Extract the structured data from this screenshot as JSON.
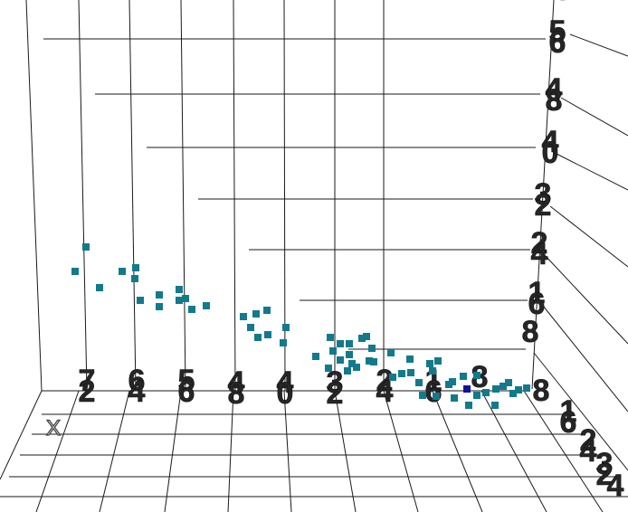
{
  "chart_data": {
    "type": "scatter",
    "axis_labels": {
      "x": "X"
    },
    "x_ticks": [
      {
        "glyphs": [
          "7",
          "2"
        ]
      },
      {
        "glyphs": [
          "6",
          "4"
        ]
      },
      {
        "glyphs": [
          "5",
          "6"
        ]
      },
      {
        "glyphs": [
          "4",
          "8"
        ]
      },
      {
        "glyphs": [
          "4",
          "0"
        ]
      },
      {
        "glyphs": [
          "3",
          "2"
        ]
      },
      {
        "glyphs": [
          "2",
          "4"
        ]
      },
      {
        "glyphs": [
          "1",
          "6"
        ]
      },
      {
        "glyphs": [
          "8"
        ]
      }
    ],
    "z_ticks": [
      {
        "glyphs": [
          "6",
          "4"
        ]
      },
      {
        "glyphs": [
          "5",
          "6"
        ]
      },
      {
        "glyphs": [
          "4",
          "8"
        ]
      },
      {
        "glyphs": [
          "4",
          "0"
        ]
      },
      {
        "glyphs": [
          "3",
          "2"
        ]
      },
      {
        "glyphs": [
          "2",
          "4"
        ]
      },
      {
        "glyphs": [
          "1",
          "6"
        ]
      },
      {
        "glyphs": [
          "8"
        ]
      }
    ],
    "y_ticks": [
      {
        "glyphs": [
          "8"
        ]
      },
      {
        "glyphs": [
          "1",
          "6"
        ]
      },
      {
        "glyphs": [
          "2",
          "4"
        ]
      },
      {
        "glyphs": [
          "3",
          "2"
        ]
      },
      {
        "glyphs": [
          "4"
        ]
      }
    ],
    "series": [
      {
        "color": "#137a8c",
        "points": [
          [
            95,
            273
          ],
          [
            83,
            300
          ],
          [
            110,
            318
          ],
          [
            135,
            300
          ],
          [
            150,
            296
          ],
          [
            149,
            308
          ],
          [
            155,
            332
          ],
          [
            176,
            326
          ],
          [
            176,
            339
          ],
          [
            198,
            320
          ],
          [
            198,
            332
          ],
          [
            205,
            330
          ],
          [
            212,
            342
          ],
          [
            228,
            338
          ],
          [
            269,
            350
          ],
          [
            283,
            347
          ],
          [
            295,
            343
          ],
          [
            277,
            362
          ],
          [
            296,
            370
          ],
          [
            316,
            362
          ],
          [
            285,
            373
          ],
          [
            313,
            379
          ],
          [
            349,
            394
          ],
          [
            365,
            373
          ],
          [
            368,
            388
          ],
          [
            376,
            380
          ],
          [
            386,
            380
          ],
          [
            400,
            374
          ],
          [
            405,
            372
          ],
          [
            386,
            392
          ],
          [
            376,
            398
          ],
          [
            363,
            407
          ],
          [
            389,
            402
          ],
          [
            394,
            406
          ],
          [
            384,
            410
          ],
          [
            411,
            385
          ],
          [
            408,
            399
          ],
          [
            413,
            400
          ],
          [
            432,
            390
          ],
          [
            453,
            397
          ],
          [
            434,
            417
          ],
          [
            444,
            413
          ],
          [
            454,
            412
          ],
          [
            475,
            402
          ],
          [
            484,
            399
          ],
          [
            478,
            410
          ],
          [
            463,
            423
          ],
          [
            467,
            437
          ],
          [
            496,
            425
          ],
          [
            500,
            422
          ],
          [
            512,
            416
          ],
          [
            527,
            415
          ],
          [
            482,
            438
          ],
          [
            502,
            440
          ],
          [
            518,
            448
          ],
          [
            527,
            437
          ],
          [
            537,
            434
          ],
          [
            548,
            430
          ],
          [
            562,
            423
          ],
          [
            567,
            435
          ],
          [
            582,
            429
          ],
          [
            547,
            448
          ],
          [
            556,
            427
          ],
          [
            573,
            431
          ]
        ]
      },
      {
        "color": "#10109a",
        "points": [
          [
            516,
            430
          ]
        ]
      }
    ]
  }
}
